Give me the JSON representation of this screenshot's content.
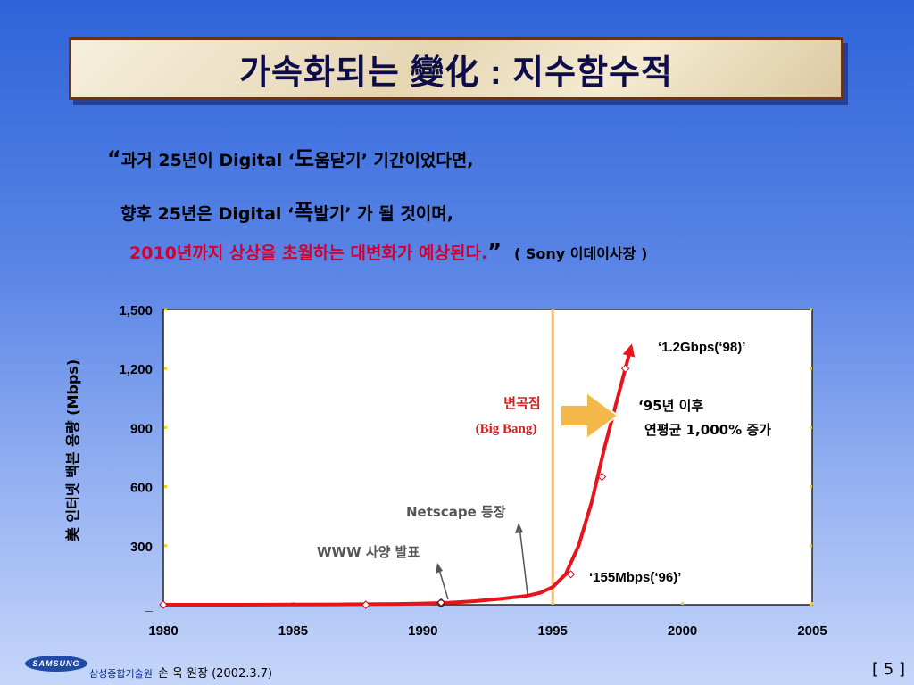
{
  "slide": {
    "title": "가속화되는 變化 : 지수함수적",
    "quote": {
      "line1": {
        "open": "“",
        "pre": "과거 25년이 Digital ‘",
        "big": "도",
        "post": "움닫기’ 기간이었다면,"
      },
      "line2": {
        "pre": "향후 25년은 Digital ‘",
        "big": "폭",
        "post": "발기’ 가 될 것이며,"
      },
      "line3": {
        "text": "2010년까지 상상을 초월하는 대변화가 예상된다.",
        "close": "”",
        "source": "( Sony 이데이사장 )"
      }
    },
    "footer": {
      "logo": "SAMSUNG",
      "org": "삼성종합기술원",
      "author": "손 욱 원장 (2002.3.7)"
    },
    "page": "[ 5 ]"
  },
  "chart_data": {
    "type": "line",
    "ylabel": "美 인터넷 백본 용량 (Mbps)",
    "xlim": [
      1980,
      2005
    ],
    "ylim": [
      0,
      1500
    ],
    "x_ticks": [
      "1980",
      "1985",
      "1990",
      "1995",
      "2000",
      "2005"
    ],
    "y_ticks": [
      "_",
      "300",
      "600",
      "900",
      "1,200",
      "1,500"
    ],
    "series": [
      {
        "color": "#e8141c",
        "x": [
          1980,
          1983,
          1985,
          1987,
          1989,
          1990,
          1991,
          1992,
          1993,
          1994,
          1994.5,
          1995,
          1995.5,
          1996,
          1996.5,
          1997,
          1997.5,
          1998
        ],
        "y": [
          0,
          0,
          1,
          2,
          4,
          6,
          10,
          18,
          30,
          45,
          60,
          90,
          155,
          300,
          520,
          800,
          1050,
          1300
        ],
        "markers_x": [
          1980,
          1987.8,
          1990.7,
          1995.7,
          1996.9,
          1997.8
        ],
        "markers_y": [
          0,
          0,
          12,
          155,
          650,
          1200
        ]
      }
    ],
    "reference_line": {
      "x": 1995,
      "color": "#f2c27a"
    },
    "annotations": [
      {
        "label": "변곡점",
        "label2": "(Big Bang)"
      },
      {
        "label": "‘1.2Gbps(‘98)’"
      },
      {
        "label": "‘155Mbps(‘96)’"
      },
      {
        "label": "‘95년 이후",
        "label2": "연평균 1,000% 증가"
      },
      {
        "label": "Netscape 등장"
      },
      {
        "label": "WWW 사양 발표"
      }
    ]
  }
}
